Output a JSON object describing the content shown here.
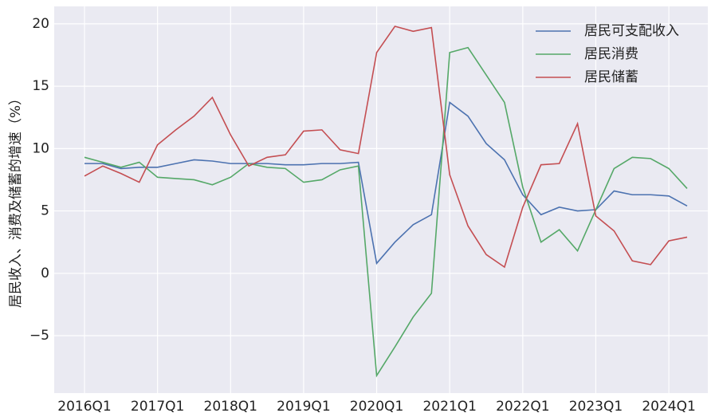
{
  "chart_data": {
    "type": "line",
    "y_label": "居民收入、消费及储蓄的增速（%）",
    "categories": [
      "2016Q1",
      null,
      null,
      null,
      "2017Q1",
      null,
      null,
      null,
      "2018Q1",
      null,
      null,
      null,
      "2019Q1",
      null,
      null,
      null,
      "2020Q1",
      null,
      null,
      null,
      "2021Q1",
      null,
      null,
      null,
      "2022Q1",
      null,
      null,
      null,
      "2023Q1",
      null,
      null,
      null,
      "2024Q1",
      null
    ],
    "series": [
      {
        "name": "居民可支配收入",
        "color": "#4c72b0",
        "values": [
          8.8,
          8.8,
          8.4,
          8.5,
          8.5,
          8.8,
          9.1,
          9.0,
          8.8,
          8.8,
          8.8,
          8.7,
          8.7,
          8.8,
          8.8,
          8.9,
          0.8,
          2.5,
          3.9,
          4.7,
          13.7,
          12.6,
          10.4,
          9.1,
          6.3,
          4.7,
          5.3,
          5.0,
          5.1,
          6.6,
          6.3,
          6.3,
          6.2,
          5.4
        ]
      },
      {
        "name": "居民消费",
        "color": "#55a868",
        "values": [
          9.3,
          8.9,
          8.5,
          8.9,
          7.7,
          7.6,
          7.5,
          7.1,
          7.7,
          8.8,
          8.5,
          8.4,
          7.3,
          7.5,
          8.3,
          8.6,
          -8.2,
          -5.9,
          -3.5,
          -1.6,
          17.7,
          18.1,
          15.9,
          13.7,
          6.9,
          2.5,
          3.5,
          1.8,
          5.1,
          8.4,
          9.3,
          9.2,
          8.4,
          6.8
        ]
      },
      {
        "name": "居民储蓄",
        "color": "#c44e52",
        "values": [
          7.8,
          8.6,
          8.0,
          7.3,
          10.3,
          11.5,
          12.6,
          14.1,
          11.1,
          8.6,
          9.3,
          9.5,
          11.4,
          11.5,
          9.9,
          9.6,
          17.7,
          19.8,
          19.4,
          19.7,
          7.9,
          3.8,
          1.5,
          0.5,
          5.3,
          8.7,
          8.8,
          12.0,
          4.6,
          3.4,
          1.0,
          0.7,
          2.6,
          2.9
        ]
      }
    ],
    "ylim": [
      -9.6,
      21.4
    ],
    "yticks": [
      {
        "value": -5,
        "label": "−5"
      },
      0,
      5,
      10,
      15,
      20
    ],
    "grid": true,
    "legend": "upper right",
    "background": "#eaeaf2"
  }
}
